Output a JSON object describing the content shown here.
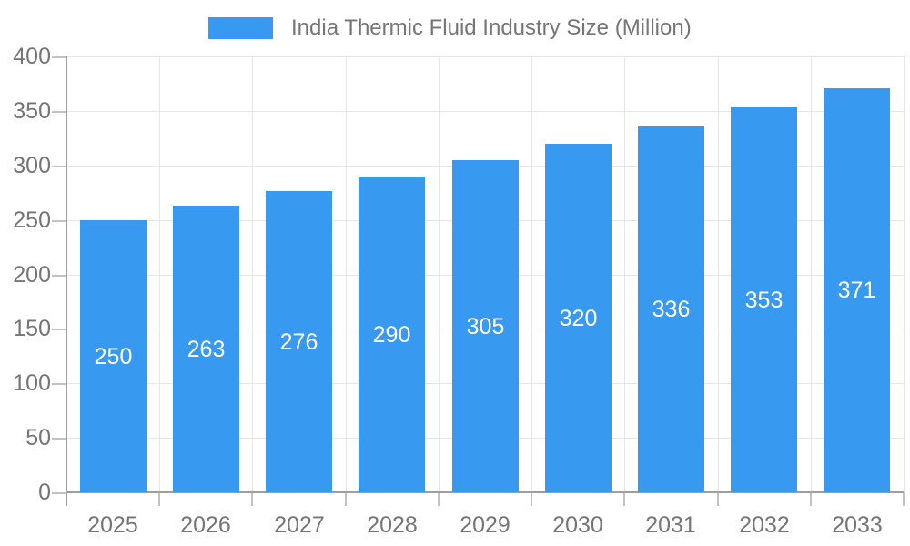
{
  "legend": {
    "label": "India Thermic Fluid Industry Size (Million)"
  },
  "chart_data": {
    "type": "bar",
    "title": "India Thermic Fluid Industry Size (Million)",
    "categories": [
      "2025",
      "2026",
      "2027",
      "2028",
      "2029",
      "2030",
      "2031",
      "2032",
      "2033"
    ],
    "values": [
      250,
      263,
      276,
      290,
      305,
      320,
      336,
      353,
      371
    ],
    "xlabel": "",
    "ylabel": "",
    "ylim": [
      0,
      400
    ],
    "ytick_step": 50,
    "yticks": [
      0,
      50,
      100,
      150,
      200,
      250,
      300,
      350,
      400
    ],
    "grid": true,
    "legend_position": "top",
    "colors": {
      "bar": "#3799F0",
      "bar_label": "#FFFFFF",
      "axis_text": "#757575",
      "gridline": "#E6E6E6",
      "axis_line": "#9E9E9E",
      "tick": "#C2C2C2"
    }
  }
}
